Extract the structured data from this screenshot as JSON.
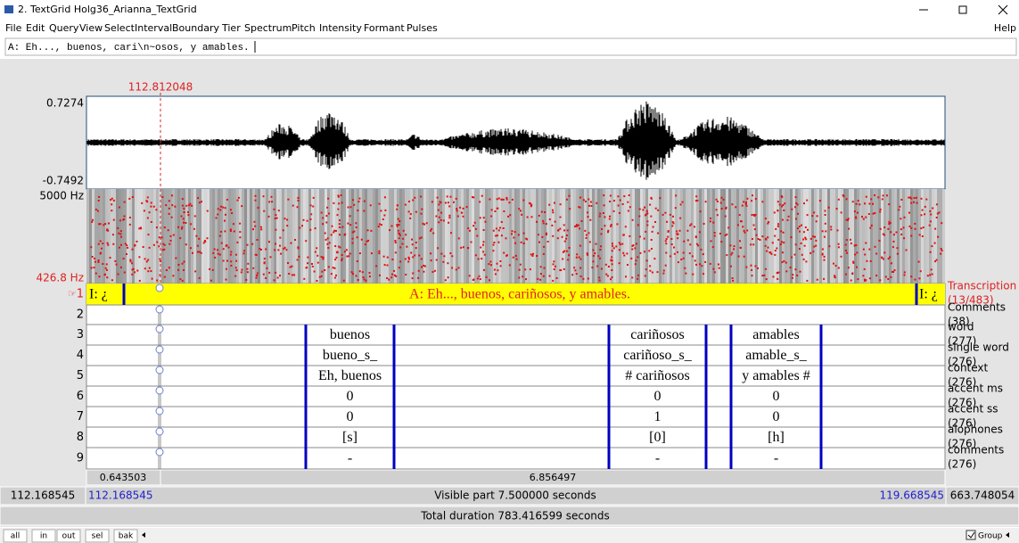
{
  "window": {
    "title": "2. TextGrid Holg36_Arianna_TextGrid"
  },
  "menu": [
    "File",
    "Edit",
    "Query",
    "View",
    "Select",
    "Interval",
    "Boundary",
    "Tier",
    "Spectrum",
    "Pitch",
    "Intensity",
    "Formant",
    "Pulses"
  ],
  "help": "Help",
  "text_field": "A: Eh..., buenos, cari\\n~osos, y amables.",
  "cursor_time": "112.812048",
  "waveform": {
    "max": "0.7274",
    "min": "-0.7492"
  },
  "spectrogram": {
    "max": "5000 Hz",
    "min": "426.8 Hz"
  },
  "tiers": [
    {
      "number": "1",
      "name": "Transcription",
      "count": "(13/483)",
      "intervals": [
        "I: ¿",
        "A: Eh..., buenos, cariñosos, y amables.",
        "I: ¿"
      ]
    },
    {
      "number": "2",
      "name": "Comments",
      "count": "(38)",
      "intervals": []
    },
    {
      "number": "3",
      "name": "word",
      "count": "(277)",
      "intervals": [
        "buenos",
        "cariñosos",
        "amables"
      ]
    },
    {
      "number": "4",
      "name": "single word",
      "count": "(276)",
      "intervals": [
        "bueno_s_",
        "cariñoso_s_",
        "amable_s_"
      ]
    },
    {
      "number": "5",
      "name": "context",
      "count": "(276)",
      "intervals": [
        "Eh, buenos",
        "# cariñosos",
        "y amables #"
      ]
    },
    {
      "number": "6",
      "name": "accent ms",
      "count": "(276)",
      "intervals": [
        "0",
        "0",
        "0"
      ]
    },
    {
      "number": "7",
      "name": "accent ss",
      "count": "(276)",
      "intervals": [
        "0",
        "1",
        "0"
      ]
    },
    {
      "number": "8",
      "name": "alophones",
      "count": "(276)",
      "intervals": [
        "[s]",
        "[0]",
        "[h]"
      ]
    },
    {
      "number": "9",
      "name": "comments",
      "count": "(276)",
      "intervals": [
        "-",
        "-",
        "-"
      ]
    }
  ],
  "selection": {
    "before": "0.643503",
    "after": "6.856497"
  },
  "visible": {
    "left_total": "112.168545",
    "start": "112.168545",
    "label": "Visible part 7.500000 seconds",
    "end": "119.668545",
    "right_total": "663.748054"
  },
  "total": "Total duration 783.416599 seconds",
  "buttons": [
    "all",
    "in",
    "out",
    "sel",
    "bak"
  ],
  "group": "Group"
}
